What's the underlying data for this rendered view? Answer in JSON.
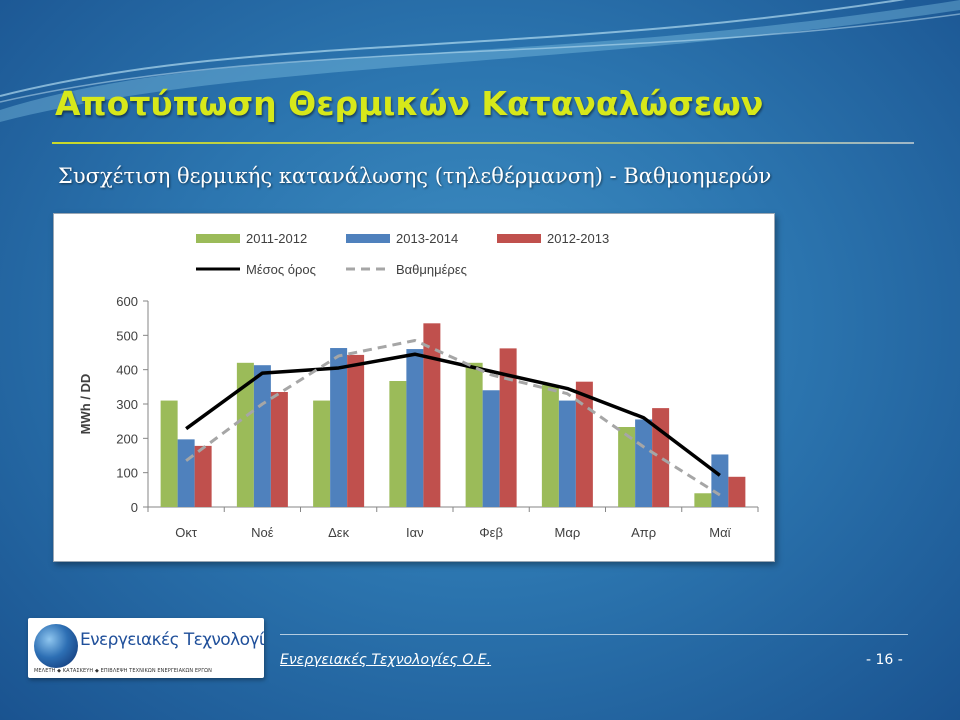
{
  "slide": {
    "title": "Αποτύπωση Θερμικών Καταναλώσεων",
    "subtitle": "Συσχέτιση θερμικής κατανάλωσης (τηλεθέρμανση) - Βαθμοημερών",
    "footer_text": "Ενεργειακές Τεχνολογίες Ο.Ε.",
    "page_number": "- 16 -",
    "logo_name": "Ενεργειακές Τεχνολογίες",
    "logo_tagline": "ΜΕΛΕΤΗ ◆ ΚΑΤΑΣΚΕΥΗ ◆ ΕΠΙΒΛΕΨΗ ΤΕΧΝΙΚΩΝ ΕΝΕΡΓΕΙΑΚΩΝ ΕΡΓΩΝ",
    "colors": {
      "title": "#d7e81a",
      "background": "#2c76b0"
    }
  },
  "chart_data": {
    "type": "bar",
    "categories": [
      "Οκτ",
      "Νοέ",
      "Δεκ",
      "Ιαν",
      "Φεβ",
      "Μαρ",
      "Απρ",
      "Μαϊ"
    ],
    "series": [
      {
        "name": "2011-2012",
        "kind": "bar",
        "color": "#9bbb59",
        "values": [
          310,
          420,
          310,
          367,
          420,
          355,
          233,
          40
        ]
      },
      {
        "name": "2013-2014",
        "kind": "bar",
        "color": "#4f81bd",
        "values": [
          197,
          413,
          463,
          460,
          340,
          310,
          255,
          153
        ]
      },
      {
        "name": "2012-2013",
        "kind": "bar",
        "color": "#c0504d",
        "values": [
          178,
          335,
          443,
          535,
          462,
          365,
          288,
          88
        ]
      },
      {
        "name": "Μέσος όρος",
        "kind": "line",
        "style": "solid",
        "color": "#000000",
        "values": [
          228,
          390,
          405,
          445,
          395,
          345,
          260,
          92
        ]
      },
      {
        "name": "Βαθμημέρες",
        "kind": "line",
        "style": "dashed",
        "color": "#a6a6a6",
        "values": [
          135,
          300,
          440,
          485,
          385,
          330,
          175,
          35
        ]
      }
    ],
    "ylabel": "MWh / DD",
    "xlabel": "",
    "ylim": [
      0,
      600
    ],
    "yticks": [
      0,
      100,
      200,
      300,
      400,
      500,
      600
    ],
    "legend_position": "top",
    "grid": false
  }
}
